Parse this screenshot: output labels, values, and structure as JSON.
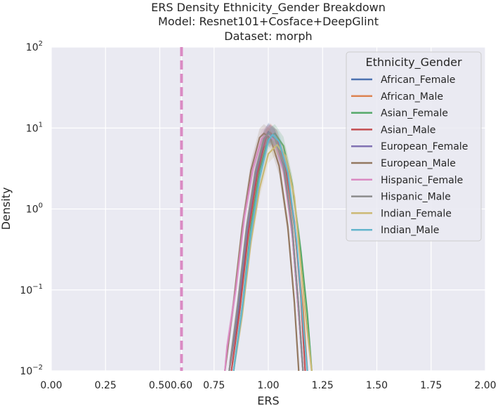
{
  "chart_data": {
    "type": "line",
    "title_lines": [
      "ERS Density Ethnicity_Gender Breakdown",
      "Model: Resnet101+Cosface+DeepGlint",
      "Dataset: morph"
    ],
    "xlabel": "ERS",
    "ylabel": "Density",
    "xlim": [
      0.0,
      2.0
    ],
    "ylim": [
      0.01,
      100
    ],
    "yscale": "log",
    "grid": true,
    "x_ticks": [
      "0.00",
      "0.25",
      "0.50",
      "0.60",
      "0.75",
      "1.00",
      "1.25",
      "1.50",
      "1.75",
      "2.00"
    ],
    "x_tick_values": [
      0.0,
      0.25,
      0.5,
      0.6,
      0.75,
      1.0,
      1.25,
      1.5,
      1.75,
      2.0
    ],
    "y_ticks": [
      {
        "value": 100,
        "base": "10",
        "exp": "2"
      },
      {
        "value": 10,
        "base": "10",
        "exp": "1"
      },
      {
        "value": 1,
        "base": "10",
        "exp": "0"
      },
      {
        "value": 0.1,
        "base": "10",
        "exp": "−1"
      },
      {
        "value": 0.01,
        "base": "10",
        "exp": "−2"
      }
    ],
    "threshold": {
      "x": 0.6,
      "color": "#da8bc3",
      "style": "dashed"
    },
    "legend": {
      "title": "Ethnicity_Gender",
      "position": "top-right"
    },
    "series": [
      {
        "name": "African_Female",
        "color": "#4c72b0",
        "points": [
          [
            0.82,
            0.01
          ],
          [
            0.86,
            0.05
          ],
          [
            0.9,
            0.4
          ],
          [
            0.94,
            2.2
          ],
          [
            0.98,
            7.0
          ],
          [
            1.0,
            9.0
          ],
          [
            1.03,
            7.6
          ],
          [
            1.07,
            3.6
          ],
          [
            1.11,
            0.5
          ],
          [
            1.14,
            0.05
          ],
          [
            1.16,
            0.01
          ]
        ]
      },
      {
        "name": "African_Male",
        "color": "#dd8452",
        "points": [
          [
            0.82,
            0.01
          ],
          [
            0.86,
            0.06
          ],
          [
            0.9,
            0.5
          ],
          [
            0.94,
            2.5
          ],
          [
            0.98,
            7.0
          ],
          [
            1.01,
            8.8
          ],
          [
            1.04,
            7.2
          ],
          [
            1.08,
            3.2
          ],
          [
            1.12,
            0.6
          ],
          [
            1.16,
            0.06
          ],
          [
            1.18,
            0.01
          ]
        ]
      },
      {
        "name": "Asian_Female",
        "color": "#55a868",
        "points": [
          [
            0.84,
            0.01
          ],
          [
            0.88,
            0.06
          ],
          [
            0.92,
            0.6
          ],
          [
            0.96,
            3.0
          ],
          [
            1.0,
            7.5
          ],
          [
            1.03,
            8.6
          ],
          [
            1.07,
            6.0
          ],
          [
            1.11,
            2.0
          ],
          [
            1.15,
            0.3
          ],
          [
            1.18,
            0.05
          ],
          [
            1.2,
            0.01
          ]
        ]
      },
      {
        "name": "Asian_Male",
        "color": "#c44e52",
        "points": [
          [
            0.83,
            0.01
          ],
          [
            0.87,
            0.06
          ],
          [
            0.91,
            0.55
          ],
          [
            0.95,
            2.8
          ],
          [
            0.99,
            7.5
          ],
          [
            1.01,
            8.5
          ],
          [
            1.04,
            7.3
          ],
          [
            1.08,
            3.3
          ],
          [
            1.12,
            0.7
          ],
          [
            1.15,
            0.08
          ],
          [
            1.17,
            0.01
          ]
        ]
      },
      {
        "name": "European_Female",
        "color": "#8172b3",
        "points": [
          [
            0.82,
            0.01
          ],
          [
            0.86,
            0.06
          ],
          [
            0.9,
            0.5
          ],
          [
            0.94,
            2.6
          ],
          [
            0.98,
            7.2
          ],
          [
            1.0,
            8.7
          ],
          [
            1.03,
            7.5
          ],
          [
            1.07,
            3.5
          ],
          [
            1.11,
            0.6
          ],
          [
            1.14,
            0.06
          ],
          [
            1.16,
            0.01
          ]
        ]
      },
      {
        "name": "European_Male",
        "color": "#937860",
        "points": [
          [
            0.8,
            0.01
          ],
          [
            0.84,
            0.07
          ],
          [
            0.88,
            0.6
          ],
          [
            0.92,
            3.0
          ],
          [
            0.96,
            7.6
          ],
          [
            0.98,
            8.6
          ],
          [
            1.01,
            7.4
          ],
          [
            1.05,
            3.4
          ],
          [
            1.09,
            0.6
          ],
          [
            1.12,
            0.07
          ],
          [
            1.14,
            0.01
          ]
        ]
      },
      {
        "name": "Hispanic_Female",
        "color": "#da8bc3",
        "points": [
          [
            0.8,
            0.01
          ],
          [
            0.81,
            0.02
          ],
          [
            0.85,
            0.1
          ],
          [
            0.89,
            0.8
          ],
          [
            0.93,
            3.2
          ],
          [
            0.97,
            7.4
          ],
          [
            1.0,
            8.4
          ],
          [
            1.03,
            6.9
          ],
          [
            1.07,
            3.0
          ],
          [
            1.11,
            0.5
          ],
          [
            1.14,
            0.05
          ],
          [
            1.16,
            0.01
          ]
        ]
      },
      {
        "name": "Hispanic_Male",
        "color": "#8c8c8c",
        "points": [
          [
            0.82,
            0.01
          ],
          [
            0.86,
            0.07
          ],
          [
            0.9,
            0.6
          ],
          [
            0.94,
            2.9
          ],
          [
            0.98,
            7.4
          ],
          [
            1.0,
            8.6
          ],
          [
            1.03,
            7.4
          ],
          [
            1.07,
            3.4
          ],
          [
            1.11,
            0.6
          ],
          [
            1.14,
            0.06
          ],
          [
            1.16,
            0.01
          ]
        ]
      },
      {
        "name": "Indian_Female",
        "color": "#ccb974",
        "points": [
          [
            0.84,
            0.01
          ],
          [
            0.88,
            0.05
          ],
          [
            0.92,
            0.4
          ],
          [
            0.96,
            1.8
          ],
          [
            1.0,
            4.8
          ],
          [
            1.04,
            6.2
          ],
          [
            1.08,
            4.5
          ],
          [
            1.12,
            1.4
          ],
          [
            1.15,
            0.2
          ],
          [
            1.18,
            0.03
          ],
          [
            1.2,
            0.01
          ]
        ]
      },
      {
        "name": "Indian_Male",
        "color": "#64b5cd",
        "points": [
          [
            0.84,
            0.01
          ],
          [
            0.88,
            0.06
          ],
          [
            0.92,
            0.5
          ],
          [
            0.96,
            2.4
          ],
          [
            1.0,
            7.0
          ],
          [
            1.02,
            8.3
          ],
          [
            1.05,
            6.8
          ],
          [
            1.09,
            2.8
          ],
          [
            1.13,
            0.4
          ],
          [
            1.16,
            0.04
          ],
          [
            1.18,
            0.01
          ]
        ]
      }
    ]
  }
}
